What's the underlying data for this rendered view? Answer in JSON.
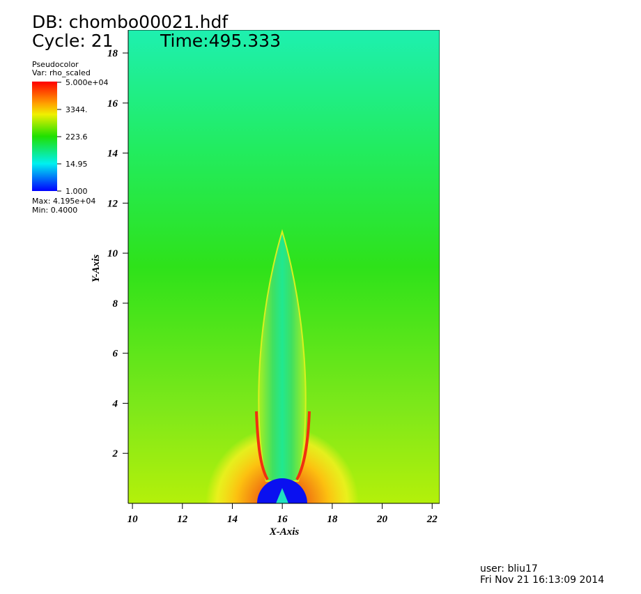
{
  "header": {
    "db": "DB: chombo00021.hdf",
    "cycle": "Cycle: 21",
    "time": "Time:495.333"
  },
  "legend": {
    "plot": "Pseudocolor",
    "var": "Var: rho_scaled",
    "labels": [
      "5.000e+04",
      "3344.",
      "223.6",
      "14.95",
      "1.000"
    ],
    "max": "Max: 4.195e+04",
    "min": "Min: 0.4000"
  },
  "axes": {
    "x_label": "X-Axis",
    "y_label": "Y-Axis",
    "xlim": [
      9.83,
      22.3
    ],
    "ylim": [
      0,
      18.92
    ],
    "xticks": [
      10,
      12,
      14,
      16,
      18,
      20,
      22
    ],
    "yticks": [
      2,
      4,
      6,
      8,
      10,
      12,
      14,
      16,
      18
    ]
  },
  "footer": {
    "user": "user: bliu17",
    "date": "Fri Nov 21 16:13:09 2014"
  }
}
